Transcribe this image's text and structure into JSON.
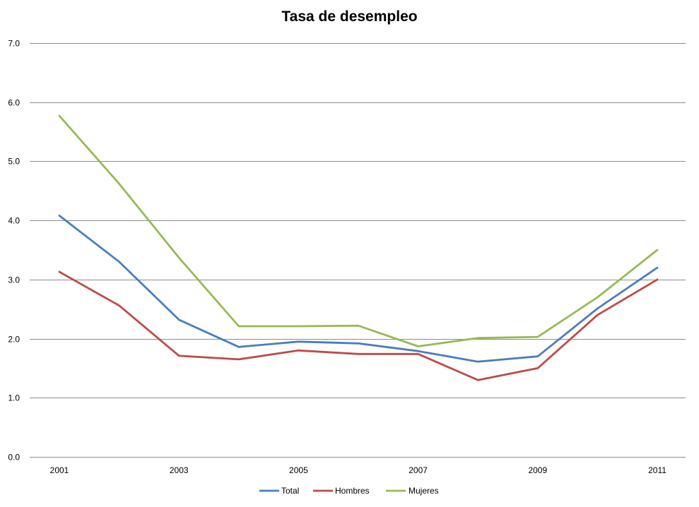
{
  "chart_data": {
    "type": "line",
    "title": "Tasa de desempleo",
    "xlabel": "",
    "ylabel": "",
    "x": [
      2001,
      2002,
      2003,
      2004,
      2005,
      2006,
      2007,
      2008,
      2009,
      2010,
      2011
    ],
    "x_tick_labels": [
      "2001",
      "2003",
      "2005",
      "2007",
      "2009",
      "2011"
    ],
    "x_tick_values": [
      2001,
      2003,
      2005,
      2007,
      2009,
      2011
    ],
    "y_tick_labels": [
      "0.0",
      "1.0",
      "2.0",
      "3.0",
      "4.0",
      "5.0",
      "6.0",
      "7.0"
    ],
    "y_tick_values": [
      0,
      1,
      2,
      3,
      4,
      5,
      6,
      7
    ],
    "ylim": [
      0,
      7
    ],
    "grid": true,
    "legend_position": "bottom",
    "series": [
      {
        "name": "Total",
        "color": "#4a7ebb",
        "values": [
          4.08,
          3.3,
          2.32,
          1.86,
          1.95,
          1.92,
          1.79,
          1.61,
          1.7,
          2.51,
          3.2
        ]
      },
      {
        "name": "Hombres",
        "color": "#be4b48",
        "values": [
          3.13,
          2.56,
          1.71,
          1.65,
          1.8,
          1.74,
          1.74,
          1.3,
          1.5,
          2.4,
          3.0
        ]
      },
      {
        "name": "Mujeres",
        "color": "#98b954",
        "values": [
          5.77,
          4.62,
          3.37,
          2.21,
          2.21,
          2.22,
          1.87,
          2.01,
          2.03,
          2.7,
          3.5
        ]
      }
    ]
  }
}
